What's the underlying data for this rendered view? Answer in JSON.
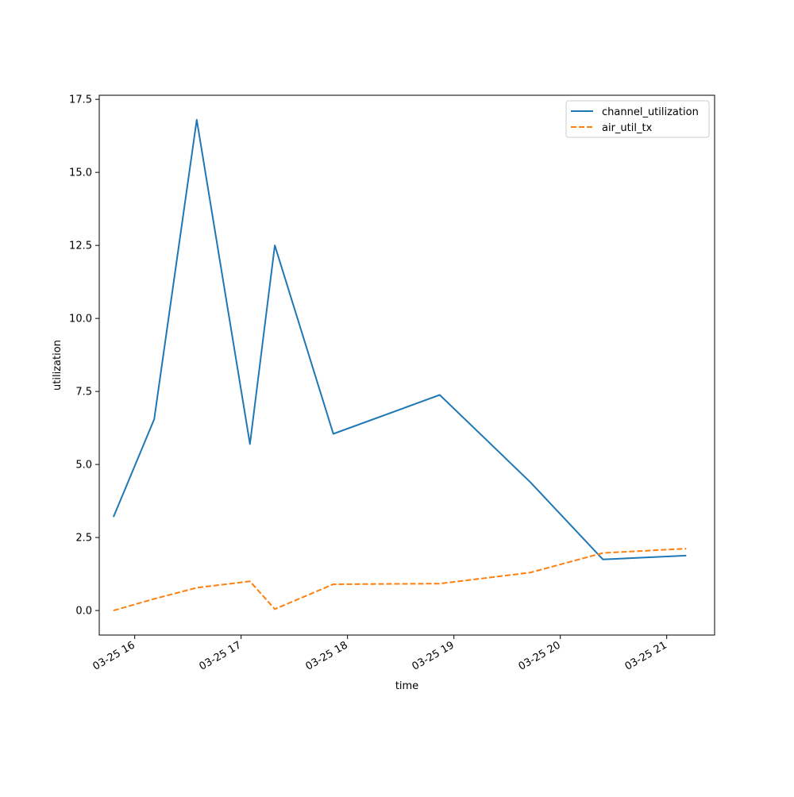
{
  "chart_data": {
    "type": "line",
    "title": "",
    "xlabel": "time",
    "ylabel": "utilization",
    "x_type": "datetime",
    "xlim": [
      "2025-03-25 15:40",
      "2025-03-25 21:27"
    ],
    "ylim": [
      -0.84,
      17.64
    ],
    "x_ticks": [
      {
        "value": "2025-03-25 16:00",
        "label": "03-25 16"
      },
      {
        "value": "2025-03-25 17:00",
        "label": "03-25 17"
      },
      {
        "value": "2025-03-25 18:00",
        "label": "03-25 18"
      },
      {
        "value": "2025-03-25 19:00",
        "label": "03-25 19"
      },
      {
        "value": "2025-03-25 20:00",
        "label": "03-25 20"
      },
      {
        "value": "2025-03-25 21:00",
        "label": "03-25 21"
      }
    ],
    "y_ticks": [
      {
        "value": 0.0,
        "label": "0.0"
      },
      {
        "value": 2.5,
        "label": "2.5"
      },
      {
        "value": 5.0,
        "label": "5.0"
      },
      {
        "value": 7.5,
        "label": "7.5"
      },
      {
        "value": 10.0,
        "label": "10.0"
      },
      {
        "value": 12.5,
        "label": "12.5"
      },
      {
        "value": 15.0,
        "label": "15.0"
      },
      {
        "value": 17.5,
        "label": "17.5"
      }
    ],
    "grid": false,
    "legend_position": "top-right",
    "series": [
      {
        "name": "channel_utilization",
        "color": "#1f77b4",
        "dash": "solid",
        "x": [
          "2025-03-25 15:48",
          "2025-03-25 16:11",
          "2025-03-25 16:35",
          "2025-03-25 17:05",
          "2025-03-25 17:19",
          "2025-03-25 17:52",
          "2025-03-25 18:52",
          "2025-03-25 19:43",
          "2025-03-25 20:24",
          "2025-03-25 21:11"
        ],
        "y": [
          3.2,
          6.55,
          16.8,
          5.7,
          12.5,
          6.05,
          7.38,
          4.4,
          1.75,
          1.88
        ]
      },
      {
        "name": "air_util_tx",
        "color": "#ff7f0e",
        "dash": "dashed",
        "x": [
          "2025-03-25 15:48",
          "2025-03-25 16:11",
          "2025-03-25 16:35",
          "2025-03-25 17:05",
          "2025-03-25 17:19",
          "2025-03-25 17:52",
          "2025-03-25 18:52",
          "2025-03-25 19:43",
          "2025-03-25 20:24",
          "2025-03-25 21:11"
        ],
        "y": [
          0.0,
          0.4,
          0.78,
          1.0,
          0.05,
          0.9,
          0.92,
          1.3,
          1.97,
          2.12
        ]
      }
    ]
  }
}
